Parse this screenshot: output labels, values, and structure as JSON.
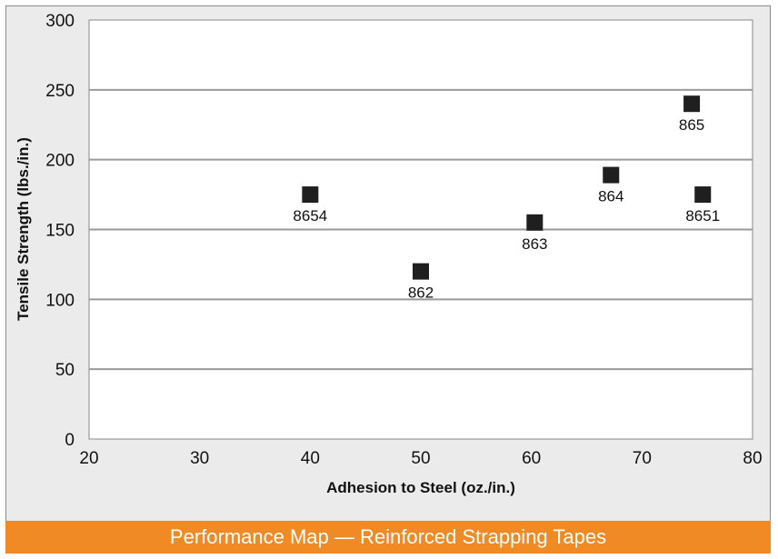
{
  "caption": "Performance Map — Reinforced Strapping Tapes",
  "colors": {
    "frame_background": "#ebebeb",
    "plot_background": "#ffffff",
    "gridline": "#9a9a9a",
    "marker": "#1f1f1f",
    "caption_bar": "#f08a24",
    "caption_text": "#ffffff"
  },
  "chart_data": {
    "type": "scatter",
    "title": "",
    "xlabel": "Adhesion to Steel (oz./in.)",
    "ylabel": "Tensile Strength (lbs./in.)",
    "xlim": [
      20,
      80
    ],
    "ylim": [
      0,
      300
    ],
    "xticks": [
      "20",
      "30",
      "40",
      "50",
      "60",
      "70",
      "80"
    ],
    "yticks": [
      "0",
      "50",
      "100",
      "150",
      "200",
      "250",
      "300"
    ],
    "grid": "horizontal",
    "marker": "square",
    "points": [
      {
        "label": "8654",
        "x": 40,
        "y": 175
      },
      {
        "label": "862",
        "x": 50,
        "y": 120
      },
      {
        "label": "863",
        "x": 60.3,
        "y": 155
      },
      {
        "label": "864",
        "x": 67.2,
        "y": 189
      },
      {
        "label": "865",
        "x": 74.5,
        "y": 240
      },
      {
        "label": "8651",
        "x": 75.5,
        "y": 175
      }
    ]
  }
}
